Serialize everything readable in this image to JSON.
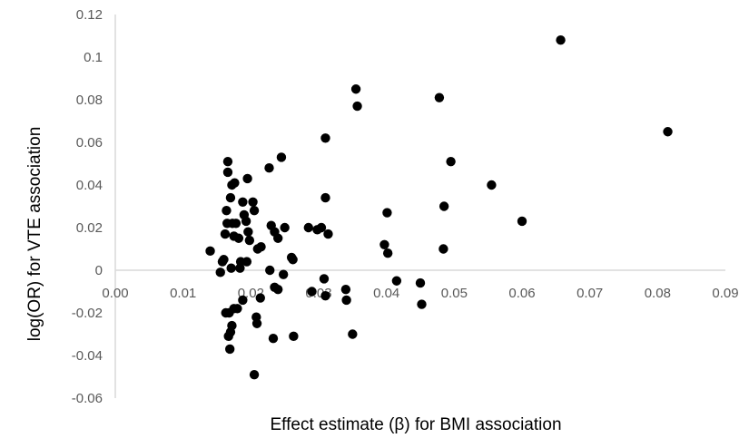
{
  "chart_data": {
    "type": "scatter",
    "title": "",
    "xlabel": "Effect estimate (β) for BMI association",
    "ylabel": "log(OR) for VTE association",
    "xlim": [
      0,
      0.09
    ],
    "ylim": [
      -0.06,
      0.12
    ],
    "x_ticks": [
      "0.00",
      "0.01",
      "0.02",
      "0.03",
      "0.04",
      "0.05",
      "0.06",
      "0.07",
      "0.08",
      "0.09"
    ],
    "y_ticks": [
      "-0.06",
      "-0.04",
      "-0.02",
      "0",
      "0.02",
      "0.04",
      "0.06",
      "0.08",
      "0.1",
      "0.12"
    ],
    "grid": false,
    "legend": "none",
    "marker_color": "#000000",
    "axis_color": "#d9d9d9",
    "points": [
      [
        0.0657,
        0.108
      ],
      [
        0.0815,
        0.065
      ],
      [
        0.0355,
        0.085
      ],
      [
        0.0357,
        0.077
      ],
      [
        0.0478,
        0.081
      ],
      [
        0.0495,
        0.051
      ],
      [
        0.0555,
        0.04
      ],
      [
        0.06,
        0.023
      ],
      [
        0.0485,
        0.03
      ],
      [
        0.0484,
        0.01
      ],
      [
        0.0401,
        0.027
      ],
      [
        0.0397,
        0.012
      ],
      [
        0.0402,
        0.008
      ],
      [
        0.0415,
        -0.005
      ],
      [
        0.045,
        -0.006
      ],
      [
        0.0452,
        -0.016
      ],
      [
        0.035,
        -0.03
      ],
      [
        0.034,
        -0.009
      ],
      [
        0.0341,
        -0.014
      ],
      [
        0.031,
        0.062
      ],
      [
        0.031,
        0.034
      ],
      [
        0.0304,
        0.02
      ],
      [
        0.0298,
        0.019
      ],
      [
        0.0314,
        0.017
      ],
      [
        0.0285,
        0.02
      ],
      [
        0.029,
        -0.01
      ],
      [
        0.0308,
        -0.004
      ],
      [
        0.031,
        -0.012
      ],
      [
        0.026,
        0.006
      ],
      [
        0.0262,
        0.005
      ],
      [
        0.0263,
        -0.031
      ],
      [
        0.0245,
        0.053
      ],
      [
        0.025,
        0.02
      ],
      [
        0.0248,
        -0.002
      ],
      [
        0.0227,
        0.048
      ],
      [
        0.023,
        0.021
      ],
      [
        0.0235,
        0.018
      ],
      [
        0.024,
        0.015
      ],
      [
        0.0228,
        0.0
      ],
      [
        0.0235,
        -0.008
      ],
      [
        0.024,
        -0.009
      ],
      [
        0.0233,
        -0.032
      ],
      [
        0.0205,
        -0.049
      ],
      [
        0.0203,
        0.032
      ],
      [
        0.0205,
        0.028
      ],
      [
        0.021,
        0.01
      ],
      [
        0.0215,
        0.011
      ],
      [
        0.0208,
        -0.022
      ],
      [
        0.0209,
        -0.025
      ],
      [
        0.0214,
        -0.013
      ],
      [
        0.0195,
        0.043
      ],
      [
        0.0193,
        0.023
      ],
      [
        0.0196,
        0.018
      ],
      [
        0.0198,
        0.014
      ],
      [
        0.0194,
        0.004
      ],
      [
        0.0188,
        -0.014
      ],
      [
        0.019,
        0.026
      ],
      [
        0.0188,
        0.032
      ],
      [
        0.0185,
        0.004
      ],
      [
        0.0184,
        0.001
      ],
      [
        0.018,
        -0.018
      ],
      [
        0.0182,
        0.015
      ],
      [
        0.0178,
        0.022
      ],
      [
        0.0176,
        0.041
      ],
      [
        0.0172,
        0.04
      ],
      [
        0.017,
        0.034
      ],
      [
        0.0173,
        0.022
      ],
      [
        0.0175,
        0.016
      ],
      [
        0.0171,
        0.001
      ],
      [
        0.0168,
        -0.02
      ],
      [
        0.0172,
        -0.026
      ],
      [
        0.0175,
        -0.018
      ],
      [
        0.017,
        -0.029
      ],
      [
        0.0169,
        -0.037
      ],
      [
        0.0167,
        -0.031
      ],
      [
        0.0166,
        0.051
      ],
      [
        0.0166,
        0.046
      ],
      [
        0.0164,
        0.028
      ],
      [
        0.0165,
        0.022
      ],
      [
        0.0162,
        0.017
      ],
      [
        0.016,
        0.005
      ],
      [
        0.0158,
        0.004
      ],
      [
        0.0163,
        -0.02
      ],
      [
        0.0155,
        -0.001
      ],
      [
        0.014,
        0.009
      ]
    ]
  }
}
